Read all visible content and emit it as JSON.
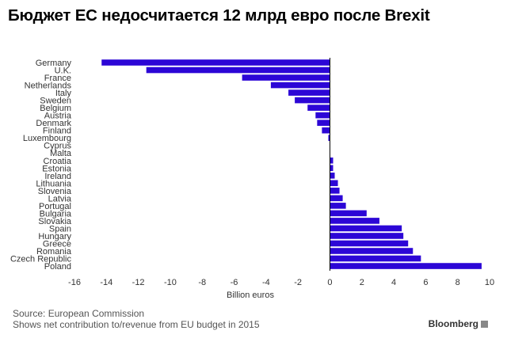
{
  "title": "Бюджет ЕС недосчитается 12 млрд евро после Brexit",
  "source": "Source: European Commission",
  "note": "Shows net contribution to/revenue from EU budget in 2015",
  "brand": "Bloomberg",
  "colors": {
    "bar": "#2c06d6",
    "zero_line": "#000000"
  },
  "chart_data": {
    "type": "bar",
    "orientation": "horizontal",
    "title": "Бюджет ЕС недосчитается 12 млрд евро после Brexit",
    "xlabel": "Billion euros",
    "ylabel": "",
    "xlim": [
      -16,
      10
    ],
    "xticks": [
      -16,
      -14,
      -12,
      -10,
      -8,
      -6,
      -4,
      -2,
      0,
      2,
      4,
      6,
      8,
      10
    ],
    "grid": false,
    "categories": [
      "Germany",
      "U.K.",
      "France",
      "Netherlands",
      "Italy",
      "Sweden",
      "Belgium",
      "Austria",
      "Denmark",
      "Finland",
      "Luxembourg",
      "Cyprus",
      "Malta",
      "Croatia",
      "Estonia",
      "Ireland",
      "Lithuania",
      "Slovenia",
      "Latvia",
      "Portugal",
      "Bulgaria",
      "Slovakia",
      "Spain",
      "Hungary",
      "Greece",
      "Romania",
      "Czech Republic",
      "Poland"
    ],
    "values": [
      -14.3,
      -11.5,
      -5.5,
      -3.7,
      -2.6,
      -2.2,
      -1.4,
      -0.9,
      -0.8,
      -0.5,
      -0.1,
      0.0,
      0.0,
      0.2,
      0.2,
      0.3,
      0.5,
      0.6,
      0.8,
      1.0,
      2.3,
      3.1,
      4.5,
      4.6,
      4.9,
      5.2,
      5.7,
      9.5
    ]
  }
}
